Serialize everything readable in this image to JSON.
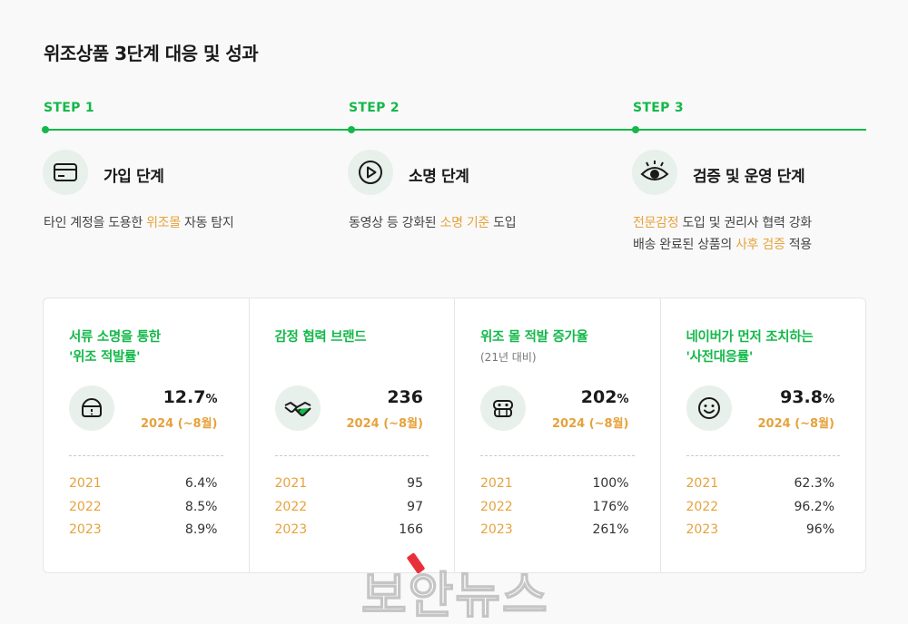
{
  "title": "위조상품 3단계 대응 및 성과",
  "steps": [
    {
      "label": "STEP 1",
      "title": "가입 단계",
      "icon": "card-icon",
      "desc": [
        [
          {
            "t": "타인 계정을 도용한 "
          },
          {
            "t": "위조몰",
            "hl": true
          },
          {
            "t": " 자동 탐지"
          }
        ]
      ]
    },
    {
      "label": "STEP 2",
      "title": "소명 단계",
      "icon": "play-icon",
      "desc": [
        [
          {
            "t": "동영상 등 강화된 "
          },
          {
            "t": "소명 기준",
            "hl": true
          },
          {
            "t": " 도입"
          }
        ]
      ]
    },
    {
      "label": "STEP 3",
      "title": "검증 및 운영 단계",
      "icon": "eye-icon",
      "desc": [
        [
          {
            "t": "전문감정",
            "hl": true
          },
          {
            "t": " 도입 및 권리사 협력 강화"
          }
        ],
        [
          {
            "t": "배송 완료된 상품의 "
          },
          {
            "t": "사후 검증",
            "hl": true
          },
          {
            "t": " 적용"
          }
        ]
      ]
    }
  ],
  "cards": [
    {
      "title": "서류 소명을 통한\n'위조 적발률'",
      "sub": "",
      "icon": "helmet-icon",
      "value": "12.7",
      "unit": "%",
      "period": "2024 (~8월)",
      "rows": [
        {
          "year": "2021",
          "value": "6.4%"
        },
        {
          "year": "2022",
          "value": "8.5%"
        },
        {
          "year": "2023",
          "value": "8.9%"
        }
      ]
    },
    {
      "title": "감정 협력 브랜드",
      "sub": "",
      "icon": "handshake-icon",
      "value": "236",
      "unit": "",
      "period": "2024 (~8월)",
      "rows": [
        {
          "year": "2021",
          "value": "95"
        },
        {
          "year": "2022",
          "value": "97"
        },
        {
          "year": "2023",
          "value": "166"
        }
      ]
    },
    {
      "title": "위조 몰 적발 증가율",
      "sub": "(21년 대비)",
      "icon": "robot-icon",
      "value": "202",
      "unit": "%",
      "period": "2024 (~8월)",
      "rows": [
        {
          "year": "2021",
          "value": "100%"
        },
        {
          "year": "2022",
          "value": "176%"
        },
        {
          "year": "2023",
          "value": "261%"
        }
      ]
    },
    {
      "title": "네이버가 먼저 조치하는\n'사전대응률'",
      "sub": "",
      "icon": "smile-icon",
      "value": "93.8",
      "unit": "%",
      "period": "2024 (~8월)",
      "rows": [
        {
          "year": "2021",
          "value": "62.3%"
        },
        {
          "year": "2022",
          "value": "96.2%"
        },
        {
          "year": "2023",
          "value": "96%"
        }
      ]
    }
  ],
  "watermark": "보안뉴스",
  "colors": {
    "accent": "#14b84a",
    "highlight": "#e6a23c",
    "icon_bg": "#e8f0eb"
  }
}
